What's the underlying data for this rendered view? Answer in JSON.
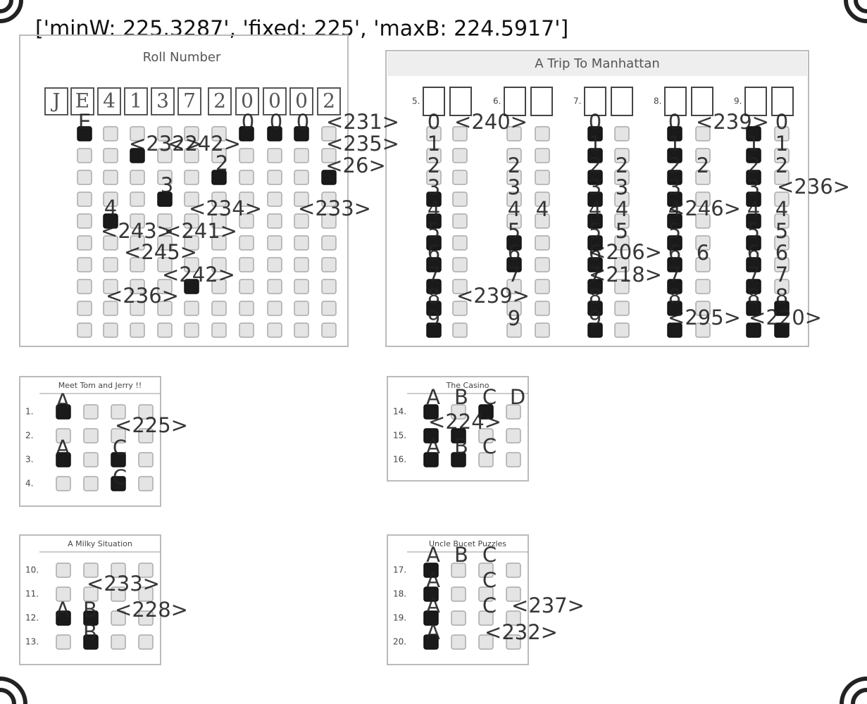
{
  "header": "['minW: 225.3287', 'fixed: 225', 'maxB: 224.5917']",
  "roll_number": {
    "title": "Roll Number",
    "written": [
      "J",
      "E",
      "4",
      "1",
      "3",
      "7",
      "2",
      "0",
      "0",
      "0",
      "2"
    ]
  },
  "manhattan": {
    "title": "A Trip To Manhattan",
    "questions": [
      "5.",
      "6.",
      "7.",
      "8.",
      "9."
    ],
    "digit_columns": [
      [
        "0",
        "1",
        "2",
        "3",
        "4",
        "5",
        "6",
        "7",
        "8",
        "9"
      ],
      [
        null,
        null,
        "2",
        "3",
        "4",
        "5",
        "6",
        "7",
        null,
        "9"
      ],
      [
        null,
        null,
        null,
        null,
        "4",
        null,
        null,
        null,
        null,
        null
      ],
      [
        "0",
        "1",
        "2",
        "3",
        "4",
        "5",
        "6",
        "7",
        "8",
        "9"
      ],
      [
        null,
        null,
        "2",
        "3",
        "4",
        "5",
        null,
        null,
        null,
        null
      ],
      [
        "0",
        "1",
        "2",
        "3",
        "4",
        "5",
        "6",
        "7",
        "8",
        null
      ],
      [
        null,
        null,
        "2",
        null,
        null,
        null,
        "6",
        null,
        null,
        null
      ],
      [
        null,
        "1",
        "2",
        "3",
        "4",
        "5",
        "6",
        "7",
        "8",
        null
      ],
      [
        "0",
        "1",
        "2",
        null,
        "4",
        "5",
        "6",
        "7",
        "8",
        null
      ]
    ]
  },
  "tom_jerry": {
    "title": "Meet Tom and Jerry !!",
    "questions": [
      "1.",
      "2.",
      "3.",
      "4."
    ]
  },
  "casino": {
    "title": "The Casino",
    "questions": [
      "14.",
      "15.",
      "16."
    ]
  },
  "milky": {
    "title": "A Milky Situation",
    "questions": [
      "10.",
      "11.",
      "12.",
      "13."
    ]
  },
  "uncle": {
    "title": "Uncle Bucet Puzzles",
    "questions": [
      "17.",
      "18.",
      "19.",
      "20."
    ]
  },
  "overlay_labels": [
    "E",
    "0",
    "0",
    "0",
    "<231>",
    "<232>",
    "<242>",
    "<235>",
    "2",
    "<26>",
    "3",
    "4",
    "<234>",
    "<233>",
    "<243>",
    "<241>",
    "<245>",
    "<242>",
    "<236>",
    "<240>",
    "<239>",
    "<239>",
    "<236>",
    "<246>",
    "<206>",
    "<218>",
    "<295>",
    "<220>",
    "A",
    "<225>",
    "A",
    "C",
    "C",
    "A",
    "B",
    "C",
    "D",
    "<224>",
    "A",
    "B",
    "C",
    "<233>",
    "A",
    "B",
    "<228>",
    "B",
    "A",
    "B",
    "C",
    "A",
    "C",
    "A",
    "C",
    "<237>",
    "A",
    "<232>"
  ]
}
